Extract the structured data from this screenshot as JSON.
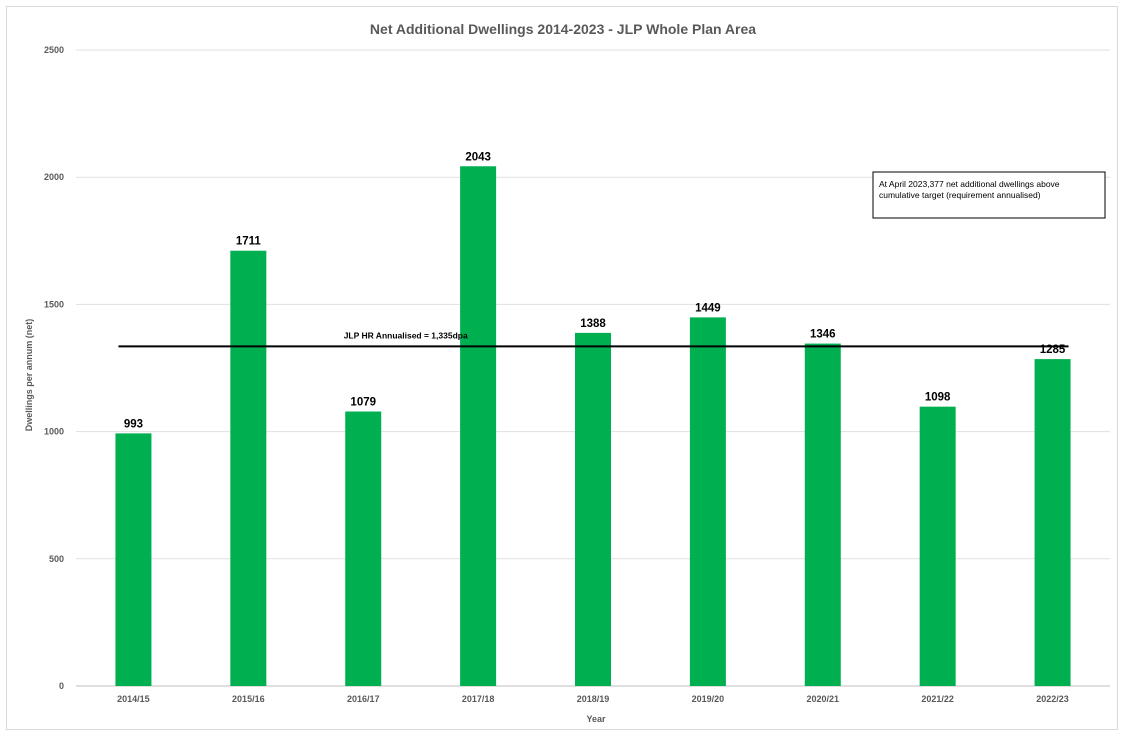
{
  "chart_data": {
    "type": "bar",
    "title": "Net Additional Dwellings 2014-2023 - JLP Whole Plan Area",
    "xlabel": "Year",
    "ylabel": "Dwellings per annum (net)",
    "ylim": [
      0,
      2500
    ],
    "yticks": [
      0,
      500,
      1000,
      1500,
      2000,
      2500
    ],
    "grid": true,
    "legend": "none",
    "categories": [
      "2014/15",
      "2015/16",
      "2016/17",
      "2017/18",
      "2018/19",
      "2019/20",
      "2020/21",
      "2021/22",
      "2022/23"
    ],
    "values": [
      993,
      1711,
      1079,
      2043,
      1388,
      1449,
      1346,
      1098,
      1285
    ],
    "bar_color": "#00b050",
    "reference_line": {
      "value": 1335,
      "label": "JLP HR Annualised  = 1,335dpa",
      "color": "#000000"
    },
    "annotation": {
      "lines": [
        "At April 2023,377 net additional dwellings above",
        "cumulative target (requirement annualised)"
      ]
    }
  }
}
